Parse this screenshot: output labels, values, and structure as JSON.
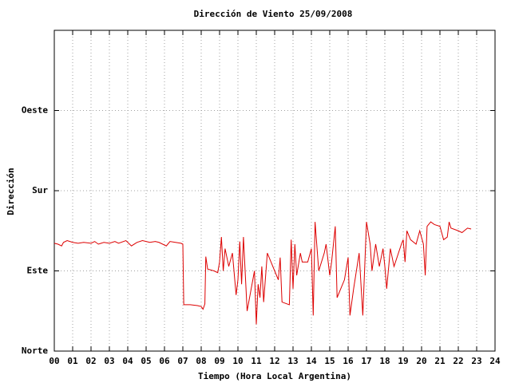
{
  "chart_data": {
    "type": "line",
    "title": "Dirección de Viento 25/09/2008",
    "x_label": "Tiempo (Hora Local Argentina)",
    "y_label": "Dirección",
    "color": "#dd0000",
    "grid": true,
    "xlim": [
      0,
      24
    ],
    "xticks": [
      {
        "value": 0,
        "label": "00"
      },
      {
        "value": 1,
        "label": "01"
      },
      {
        "value": 2,
        "label": "02"
      },
      {
        "value": 3,
        "label": "03"
      },
      {
        "value": 4,
        "label": "04"
      },
      {
        "value": 5,
        "label": "05"
      },
      {
        "value": 6,
        "label": "06"
      },
      {
        "value": 7,
        "label": "07"
      },
      {
        "value": 8,
        "label": "08"
      },
      {
        "value": 9,
        "label": "09"
      },
      10,
      11,
      12,
      13,
      14,
      15,
      16,
      17,
      18,
      19,
      20,
      21,
      22,
      23,
      24
    ],
    "ylim": [
      0,
      360
    ],
    "yticks": [
      {
        "value": 0,
        "label": "Norte"
      },
      {
        "value": 90,
        "label": "Este"
      },
      {
        "value": 180,
        "label": "Sur"
      },
      {
        "value": 270,
        "label": "Oeste"
      }
    ],
    "x": [
      0,
      0.2,
      0.4,
      0.5,
      0.7,
      1.0,
      1.3,
      1.6,
      2.0,
      2.2,
      2.4,
      2.7,
      3.0,
      3.3,
      3.5,
      3.9,
      4.2,
      4.5,
      4.8,
      5.2,
      5.5,
      5.7,
      6.1,
      6.3,
      6.6,
      6.9,
      7.0,
      7.05,
      7.4,
      7.8,
      8.0,
      8.1,
      8.2,
      8.25,
      8.35,
      8.7,
      8.9,
      9.0,
      9.1,
      9.2,
      9.3,
      9.5,
      9.7,
      9.9,
      10.0,
      10.1,
      10.2,
      10.3,
      10.5,
      10.9,
      11.0,
      11.1,
      11.2,
      11.3,
      11.4,
      11.6,
      11.8,
      12.0,
      12.2,
      12.3,
      12.4,
      12.8,
      12.9,
      13.0,
      13.1,
      13.2,
      13.4,
      13.5,
      13.8,
      14.0,
      14.1,
      14.2,
      14.4,
      14.7,
      14.8,
      15.0,
      15.1,
      15.3,
      15.4,
      15.8,
      16.0,
      16.1,
      16.3,
      16.6,
      16.8,
      17.0,
      17.2,
      17.3,
      17.5,
      17.7,
      17.9,
      18.0,
      18.1,
      18.3,
      18.5,
      18.9,
      19.0,
      19.1,
      19.2,
      19.4,
      19.7,
      19.9,
      20.1,
      20.2,
      20.3,
      20.5,
      20.7,
      21.0,
      21.2,
      21.4,
      21.5,
      21.6,
      22.0,
      22.2,
      22.5,
      22.7
    ],
    "values": [
      121,
      120,
      118,
      122,
      124,
      122,
      121,
      122,
      121,
      123,
      120,
      122,
      121,
      123,
      121,
      124,
      118,
      122,
      124,
      122,
      123,
      122,
      118,
      123,
      122,
      121,
      120,
      52,
      52,
      51,
      50,
      47,
      53,
      106,
      92,
      90,
      88,
      100,
      128,
      90,
      115,
      95,
      110,
      63,
      80,
      123,
      75,
      128,
      45,
      90,
      30,
      75,
      60,
      95,
      55,
      110,
      100,
      90,
      80,
      105,
      55,
      52,
      125,
      70,
      120,
      85,
      110,
      100,
      100,
      115,
      40,
      145,
      90,
      110,
      120,
      85,
      100,
      140,
      60,
      80,
      105,
      40,
      70,
      110,
      40,
      145,
      120,
      90,
      120,
      95,
      115,
      95,
      70,
      115,
      95,
      120,
      125,
      100,
      135,
      125,
      120,
      135,
      120,
      85,
      140,
      145,
      142,
      140,
      125,
      128,
      145,
      138,
      135,
      133,
      138,
      137
    ]
  }
}
